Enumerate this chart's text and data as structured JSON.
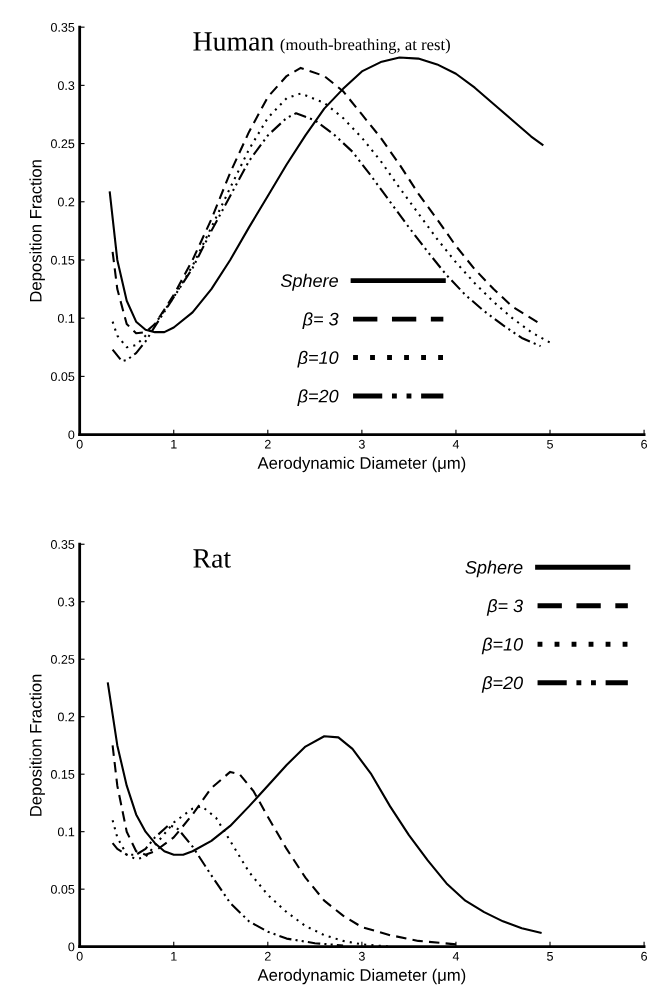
{
  "chart_data": [
    {
      "type": "line",
      "title": "Human",
      "subtitle": "(mouth-breathing, at rest)",
      "xlabel": "Aerodynamic Diameter (μm)",
      "ylabel": "Deposition Fraction",
      "xlim": [
        0,
        6
      ],
      "xticks": [
        0,
        1,
        2,
        3,
        4,
        5,
        6
      ],
      "ylim": [
        0,
        0.35
      ],
      "yticks": [
        0,
        0.05,
        0.1,
        0.15,
        0.2,
        0.25,
        0.3,
        0.35
      ],
      "grid": false,
      "legend": "bottom",
      "marker": "none",
      "series": [
        {
          "name": "Sphere",
          "color": "#000000",
          "line_style": "solid",
          "x": [
            0.32,
            0.4,
            0.5,
            0.6,
            0.7,
            0.8,
            0.9,
            1.0,
            1.2,
            1.4,
            1.6,
            1.8,
            2.0,
            2.2,
            2.4,
            2.6,
            2.8,
            3.0,
            3.2,
            3.4,
            3.6,
            3.8,
            4.0,
            4.2,
            4.4,
            4.6,
            4.8,
            4.92
          ],
          "values": [
            0.208,
            0.15,
            0.115,
            0.097,
            0.09,
            0.088,
            0.088,
            0.092,
            0.105,
            0.125,
            0.15,
            0.178,
            0.205,
            0.232,
            0.257,
            0.28,
            0.297,
            0.312,
            0.32,
            0.324,
            0.323,
            0.318,
            0.31,
            0.298,
            0.284,
            0.27,
            0.256,
            0.249
          ]
        },
        {
          "name": "β= 3",
          "color": "#000000",
          "line_style": "dashed",
          "x": [
            0.35,
            0.4,
            0.5,
            0.6,
            0.7,
            0.8,
            1.0,
            1.2,
            1.4,
            1.6,
            1.8,
            2.0,
            2.2,
            2.35,
            2.6,
            2.8,
            3.0,
            3.2,
            3.4,
            3.6,
            3.8,
            4.0,
            4.2,
            4.4,
            4.6,
            4.9
          ],
          "values": [
            0.157,
            0.125,
            0.095,
            0.087,
            0.088,
            0.095,
            0.12,
            0.15,
            0.185,
            0.225,
            0.26,
            0.29,
            0.308,
            0.315,
            0.308,
            0.295,
            0.275,
            0.255,
            0.232,
            0.207,
            0.185,
            0.162,
            0.142,
            0.125,
            0.11,
            0.095
          ]
        },
        {
          "name": "β=10",
          "color": "#000000",
          "line_style": "dotted",
          "x": [
            0.35,
            0.4,
            0.5,
            0.6,
            0.7,
            0.8,
            1.0,
            1.2,
            1.4,
            1.6,
            1.8,
            2.0,
            2.2,
            2.35,
            2.6,
            2.8,
            3.0,
            3.2,
            3.4,
            3.6,
            3.8,
            4.0,
            4.2,
            4.4,
            4.6,
            4.8,
            5.0
          ],
          "values": [
            0.097,
            0.085,
            0.075,
            0.077,
            0.085,
            0.095,
            0.118,
            0.145,
            0.178,
            0.212,
            0.245,
            0.272,
            0.289,
            0.293,
            0.285,
            0.272,
            0.255,
            0.235,
            0.212,
            0.19,
            0.168,
            0.148,
            0.13,
            0.114,
            0.1,
            0.088,
            0.079
          ]
        },
        {
          "name": "β=20",
          "color": "#000000",
          "line_style": "dashdotdot",
          "x": [
            0.35,
            0.45,
            0.5,
            0.6,
            0.7,
            0.8,
            1.0,
            1.2,
            1.4,
            1.6,
            1.8,
            2.0,
            2.2,
            2.3,
            2.5,
            2.7,
            2.9,
            3.1,
            3.3,
            3.5,
            3.7,
            3.9,
            4.1,
            4.3,
            4.5,
            4.7,
            4.9
          ],
          "values": [
            0.073,
            0.063,
            0.064,
            0.07,
            0.08,
            0.093,
            0.118,
            0.143,
            0.175,
            0.205,
            0.235,
            0.257,
            0.272,
            0.276,
            0.27,
            0.258,
            0.243,
            0.222,
            0.2,
            0.178,
            0.157,
            0.137,
            0.12,
            0.106,
            0.094,
            0.083,
            0.076
          ]
        }
      ]
    },
    {
      "type": "line",
      "title": "Rat",
      "xlabel": "Aerodynamic Diameter (μm)",
      "ylabel": "Deposition Fraction",
      "xlim": [
        0,
        6
      ],
      "xticks": [
        0,
        1,
        2,
        3,
        4,
        5,
        6
      ],
      "ylim": [
        0,
        0.35
      ],
      "yticks": [
        0,
        0.05,
        0.1,
        0.15,
        0.2,
        0.25,
        0.3,
        0.35
      ],
      "grid": false,
      "legend": "top right",
      "marker": "none",
      "series": [
        {
          "name": "Sphere",
          "color": "#000000",
          "line_style": "solid",
          "x": [
            0.3,
            0.4,
            0.5,
            0.6,
            0.7,
            0.8,
            0.9,
            1.0,
            1.1,
            1.2,
            1.4,
            1.6,
            1.8,
            2.0,
            2.2,
            2.4,
            2.6,
            2.75,
            2.9,
            3.1,
            3.3,
            3.5,
            3.7,
            3.9,
            4.1,
            4.3,
            4.5,
            4.7,
            4.9
          ],
          "values": [
            0.229,
            0.175,
            0.14,
            0.115,
            0.1,
            0.09,
            0.083,
            0.08,
            0.08,
            0.083,
            0.092,
            0.105,
            0.122,
            0.14,
            0.158,
            0.174,
            0.183,
            0.182,
            0.172,
            0.15,
            0.122,
            0.097,
            0.075,
            0.055,
            0.04,
            0.03,
            0.022,
            0.016,
            0.012
          ]
        },
        {
          "name": "β= 3",
          "color": "#000000",
          "line_style": "dashed",
          "x": [
            0.35,
            0.4,
            0.5,
            0.6,
            0.7,
            0.8,
            1.0,
            1.2,
            1.4,
            1.6,
            1.7,
            1.85,
            2.0,
            2.2,
            2.4,
            2.6,
            2.8,
            3.0,
            3.3,
            3.6,
            4.0
          ],
          "values": [
            0.175,
            0.14,
            0.1,
            0.083,
            0.08,
            0.083,
            0.095,
            0.115,
            0.138,
            0.152,
            0.15,
            0.135,
            0.113,
            0.085,
            0.06,
            0.04,
            0.027,
            0.017,
            0.01,
            0.005,
            0.002
          ]
        },
        {
          "name": "β=10",
          "color": "#000000",
          "line_style": "dotted",
          "x": [
            0.35,
            0.4,
            0.5,
            0.6,
            0.7,
            0.8,
            1.0,
            1.2,
            1.3,
            1.45,
            1.6,
            1.8,
            2.0,
            2.2,
            2.4,
            2.6,
            2.8,
            3.0,
            3.3
          ],
          "values": [
            0.11,
            0.095,
            0.08,
            0.076,
            0.078,
            0.088,
            0.108,
            0.12,
            0.122,
            0.112,
            0.092,
            0.065,
            0.045,
            0.03,
            0.018,
            0.01,
            0.005,
            0.002,
            0.0
          ]
        },
        {
          "name": "β=20",
          "color": "#000000",
          "line_style": "dashdotdot",
          "x": [
            0.35,
            0.4,
            0.5,
            0.6,
            0.7,
            0.8,
            0.95,
            1.05,
            1.2,
            1.4,
            1.6,
            1.8,
            2.0,
            2.2,
            2.5,
            2.8
          ],
          "values": [
            0.09,
            0.085,
            0.08,
            0.08,
            0.085,
            0.095,
            0.106,
            0.102,
            0.087,
            0.062,
            0.038,
            0.022,
            0.013,
            0.007,
            0.003,
            0.001
          ]
        }
      ]
    }
  ]
}
